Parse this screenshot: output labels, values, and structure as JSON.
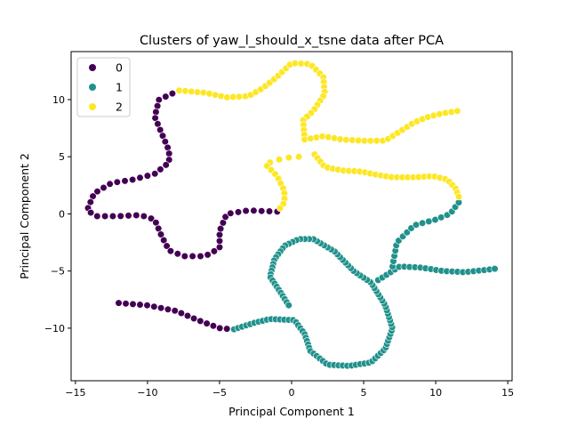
{
  "chart_data": {
    "type": "scatter",
    "title": "Clusters of yaw_l_should_x_tsne data after PCA",
    "xlabel": "Principal Component 1",
    "ylabel": "Principal Component 2",
    "xlim": [
      -15.3,
      15.3
    ],
    "ylim": [
      -14.6,
      14.2
    ],
    "xticks": [
      -15,
      -10,
      -5,
      0,
      5,
      10,
      15
    ],
    "yticks": [
      -10,
      -5,
      0,
      5,
      10
    ],
    "grid": false,
    "legend": {
      "placement": "top-left",
      "entries": [
        "0",
        "1",
        "2"
      ]
    },
    "colors": {
      "0": "#440154",
      "1": "#21918c",
      "2": "#fde725"
    },
    "series": [
      {
        "name": "0",
        "path": [
          [
            -7.8,
            10.8
          ],
          [
            -9.2,
            10.0
          ],
          [
            -9.5,
            8.5
          ],
          [
            -9.0,
            7.0
          ],
          [
            -8.5,
            5.5
          ],
          [
            -8.5,
            4.5
          ],
          [
            -9.5,
            3.5
          ],
          [
            -11,
            3.0
          ],
          [
            -12.5,
            2.7
          ],
          [
            -13.7,
            1.8
          ],
          [
            -14.2,
            0.3
          ],
          [
            -13.5,
            -0.2
          ],
          [
            -12,
            -0.2
          ],
          [
            -10.5,
            -0.1
          ],
          [
            -9.5,
            -0.5
          ],
          [
            -9.0,
            -2.0
          ],
          [
            -8.5,
            -3.2
          ],
          [
            -7.5,
            -3.7
          ],
          [
            -6,
            -3.7
          ],
          [
            -5,
            -3.0
          ],
          [
            -5,
            -1.5
          ],
          [
            -4.5,
            0
          ],
          [
            -3,
            0.3
          ],
          [
            -1,
            0.2
          ]
        ],
        "n": 62
      },
      {
        "name": "0",
        "path": [
          [
            -12,
            -7.8
          ],
          [
            -10,
            -8.0
          ],
          [
            -8,
            -8.5
          ],
          [
            -6.5,
            -9.3
          ],
          [
            -5,
            -10.0
          ],
          [
            -4,
            -10.1
          ]
        ],
        "n": 18
      },
      {
        "name": "1",
        "path": [
          [
            -4,
            -10.1
          ],
          [
            -2.5,
            -9.5
          ],
          [
            -1.5,
            -9.2
          ],
          [
            0.2,
            -9.3
          ],
          [
            0.9,
            -10.5
          ],
          [
            1.3,
            -12.0
          ],
          [
            2.5,
            -13.2
          ],
          [
            4.0,
            -13.3
          ],
          [
            5.5,
            -13.0
          ],
          [
            6.5,
            -11.8
          ],
          [
            7.0,
            -10.0
          ],
          [
            6.5,
            -8.0
          ],
          [
            5.5,
            -6.0
          ],
          [
            4.3,
            -5.0
          ],
          [
            3.0,
            -3.3
          ],
          [
            1.5,
            -2.2
          ],
          [
            0.5,
            -2.2
          ],
          [
            -0.5,
            -2.8
          ],
          [
            -1.2,
            -4.0
          ],
          [
            -1.5,
            -5.5
          ],
          [
            -0.8,
            -6.8
          ],
          [
            -0.2,
            -8.0
          ]
        ],
        "n": 110
      },
      {
        "name": "1",
        "path": [
          [
            6,
            -5.8
          ],
          [
            7.5,
            -4.6
          ],
          [
            9.0,
            -4.7
          ],
          [
            10.5,
            -5.0
          ],
          [
            12.0,
            -5.1
          ],
          [
            13.5,
            -4.9
          ],
          [
            14.1,
            -4.8
          ]
        ],
        "n": 24
      },
      {
        "name": "1",
        "path": [
          [
            7.0,
            -4.6
          ],
          [
            7.3,
            -2.5
          ],
          [
            8.5,
            -1.0
          ],
          [
            10.0,
            -0.5
          ],
          [
            11.0,
            0.0
          ],
          [
            11.6,
            1.0
          ]
        ],
        "n": 18
      },
      {
        "name": "2",
        "path": [
          [
            -7.8,
            10.8
          ],
          [
            -6,
            10.6
          ],
          [
            -4.5,
            10.2
          ],
          [
            -3,
            10.3
          ],
          [
            -2,
            11.0
          ],
          [
            -1,
            12.0
          ],
          [
            0,
            13.2
          ],
          [
            1.3,
            13.1
          ],
          [
            2.2,
            12.0
          ],
          [
            2.3,
            10.5
          ],
          [
            1.5,
            9.0
          ],
          [
            0.8,
            8.2
          ],
          [
            0.9,
            6.5
          ],
          [
            2.2,
            6.8
          ],
          [
            3.5,
            6.5
          ],
          [
            5,
            6.4
          ],
          [
            6.5,
            6.4
          ],
          [
            7.5,
            7.2
          ],
          [
            8.5,
            8.0
          ],
          [
            9.5,
            8.5
          ],
          [
            10.5,
            8.8
          ],
          [
            11.5,
            9.0
          ]
        ],
        "n": 70
      },
      {
        "name": "2",
        "path": [
          [
            -1.5,
            4.5
          ],
          [
            -0.5,
            4.9
          ],
          [
            0.5,
            5.0
          ]
        ],
        "n": 4
      },
      {
        "name": "2",
        "path": [
          [
            -1.7,
            4.2
          ],
          [
            -1.0,
            3.3
          ],
          [
            -0.5,
            2.0
          ],
          [
            -0.5,
            1.0
          ],
          [
            -0.8,
            0.5
          ]
        ],
        "n": 10
      },
      {
        "name": "2",
        "path": [
          [
            1.6,
            5.2
          ],
          [
            2.3,
            4.1
          ],
          [
            3.5,
            3.8
          ],
          [
            4.8,
            3.7
          ],
          [
            6.0,
            3.4
          ],
          [
            7.0,
            3.2
          ],
          [
            8.5,
            3.2
          ],
          [
            9.8,
            3.3
          ],
          [
            10.8,
            3.0
          ],
          [
            11.4,
            2.2
          ],
          [
            11.6,
            1.5
          ]
        ],
        "n": 32
      }
    ]
  }
}
